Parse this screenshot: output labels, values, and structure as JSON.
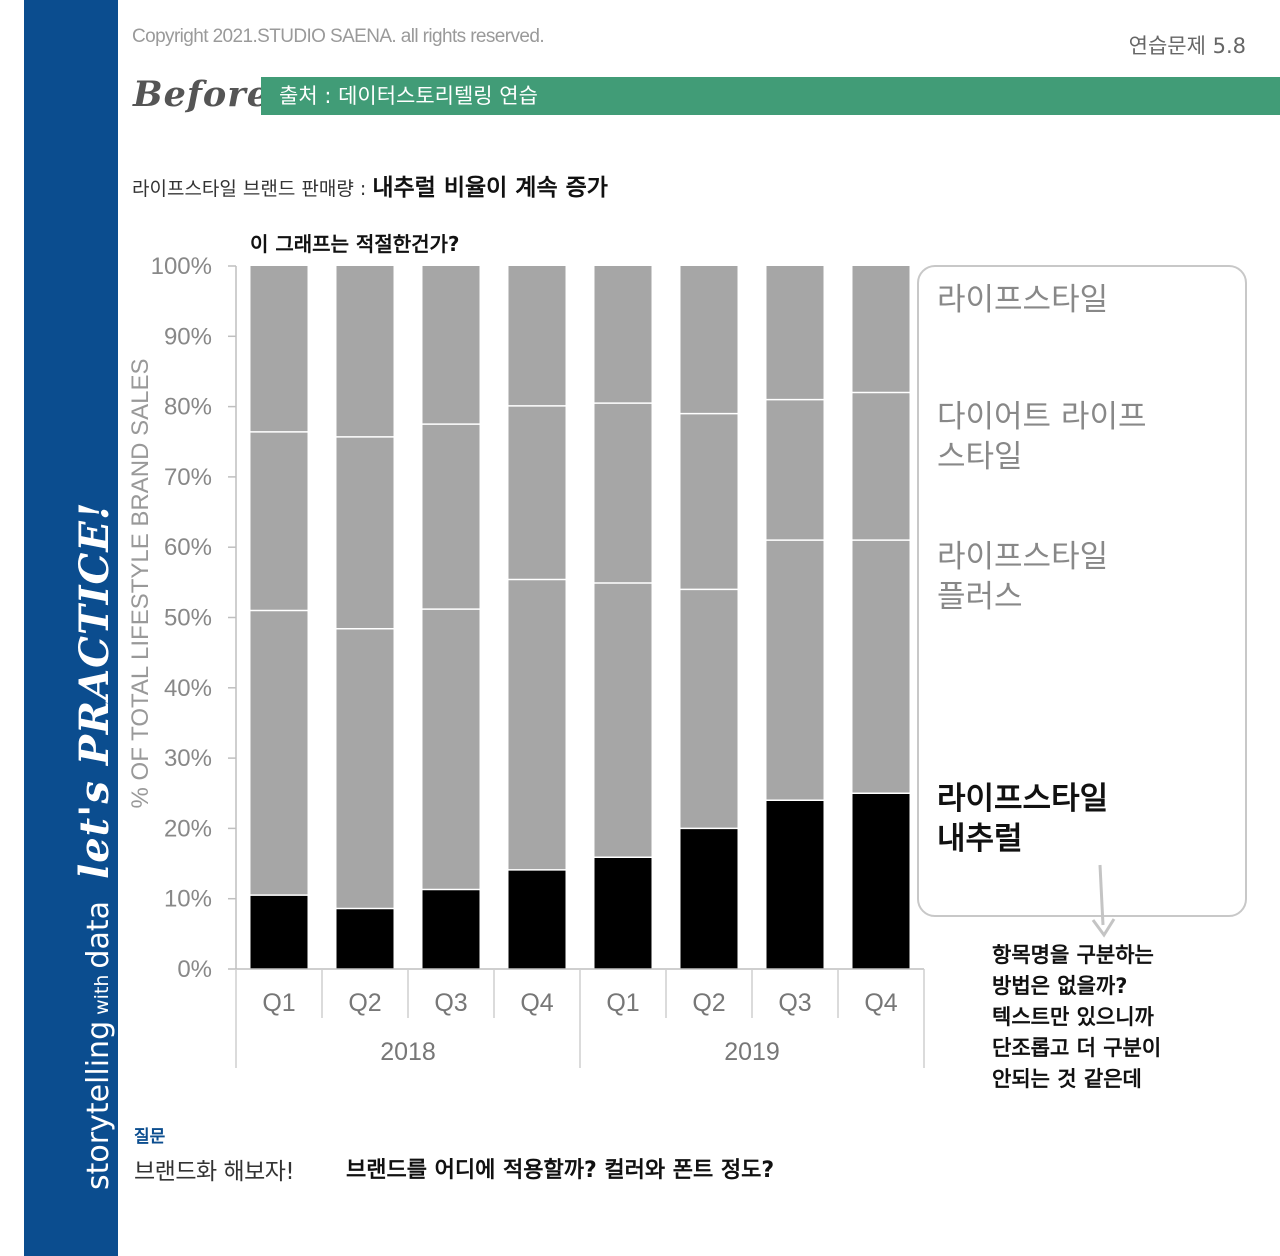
{
  "header": {
    "copyright": "Copyright 2021.STUDIO SAENA. all rights reserved.",
    "exercise": "연습문제 5.8",
    "before_label": "Before",
    "source": "출처 : 데이터스토리텔링 연습"
  },
  "sidebar": {
    "storytelling": "storytelling",
    "with": "with",
    "data": "data",
    "practice": "let's PRACTICE!"
  },
  "headline": {
    "prefix": "라이프스타일 브랜드 판매량 : ",
    "emphasis": "내추럴 비율이 계속 증가"
  },
  "annotations": {
    "question": "이 그래프는 적절한건가?",
    "comment_lines": [
      "항목명을 구분하는",
      "방법은 없을까?",
      "텍스트만 있으니까",
      "단조롭고 더 구분이",
      "안되는 것 같은데"
    ]
  },
  "footer": {
    "question_label": "질문",
    "brand_prompt": "브랜드화 해보자!",
    "brand_question": "브랜드를 어디에 적용할까? 컬러와 폰트 정도?"
  },
  "legend": {
    "items": [
      {
        "label_lines": [
          "라이프스타일"
        ]
      },
      {
        "label_lines": [
          "다이어트 라이프",
          "스타일"
        ]
      },
      {
        "label_lines": [
          "라이프스타일",
          "플러스"
        ]
      },
      {
        "label_lines": [
          "라이프스타일",
          "내추럴"
        ]
      }
    ]
  },
  "chart_data": {
    "type": "bar",
    "stacked": true,
    "ylabel": "% OF TOTAL LIFESTYLE BRAND SALES",
    "ylim": [
      0,
      100
    ],
    "yticks": [
      "0%",
      "10%",
      "20%",
      "30%",
      "40%",
      "50%",
      "60%",
      "70%",
      "80%",
      "90%",
      "100%"
    ],
    "categories": [
      "Q1",
      "Q2",
      "Q3",
      "Q4",
      "Q1",
      "Q2",
      "Q3",
      "Q4"
    ],
    "groups": [
      {
        "label": "2018",
        "count": 4
      },
      {
        "label": "2019",
        "count": 4
      }
    ],
    "series": [
      {
        "name": "라이프스타일 내추럴",
        "color": "#000000",
        "values": [
          10.5,
          8.6,
          11.3,
          14.1,
          15.9,
          20.0,
          24.0,
          25.0
        ]
      },
      {
        "name": "라이프스타일 플러스",
        "color": "#a6a6a6",
        "values": [
          40.5,
          39.8,
          39.9,
          41.3,
          39.0,
          34.0,
          37.0,
          36.0
        ]
      },
      {
        "name": "다이어트 라이프스타일",
        "color": "#a6a6a6",
        "values": [
          25.4,
          27.3,
          26.3,
          24.7,
          25.6,
          25.0,
          20.0,
          21.0
        ]
      },
      {
        "name": "라이프스타일",
        "color": "#a6a6a6",
        "values": [
          23.6,
          24.3,
          22.5,
          19.9,
          19.5,
          21.0,
          19.0,
          18.0
        ]
      }
    ]
  }
}
